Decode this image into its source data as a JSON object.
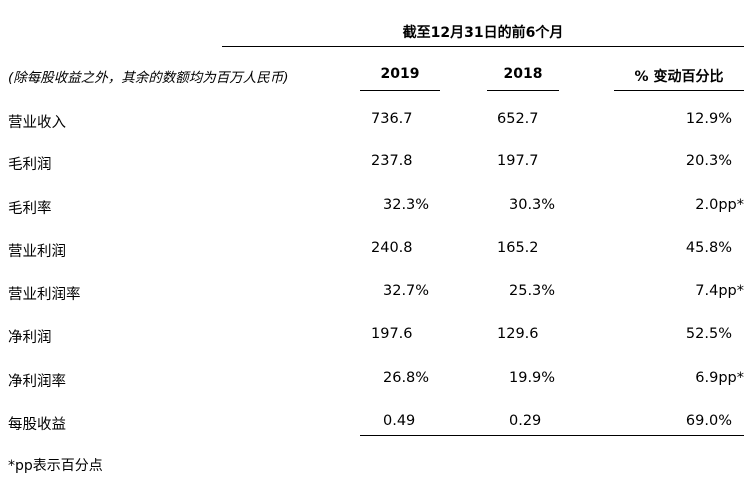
{
  "header": {
    "period": "截至12月31日的前6个月",
    "unit_note": "(除每股收益之外，其余的数额均为百万人民币)",
    "col_2019": "2019",
    "col_2018": "2018",
    "col_change": "% 变动百分比"
  },
  "rows": [
    {
      "label": "营业收入",
      "v2019": "736.7",
      "v2018": "652.7",
      "change": "12.9%"
    },
    {
      "label": "毛利润",
      "v2019": "237.8",
      "v2018": "197.7",
      "change": "20.3%"
    },
    {
      "label": "毛利率",
      "v2019": "32.3%",
      "v2018": "30.3%",
      "change": "2.0pp*"
    },
    {
      "label": "营业利润",
      "v2019": "240.8",
      "v2018": "165.2",
      "change": "45.8%"
    },
    {
      "label": "营业利润率",
      "v2019": "32.7%",
      "v2018": "25.3%",
      "change": "7.4pp*"
    },
    {
      "label": "净利润",
      "v2019": "197.6",
      "v2018": "129.6",
      "change": "52.5%"
    },
    {
      "label": "净利润率",
      "v2019": "26.8%",
      "v2018": "19.9%",
      "change": "6.9pp*"
    },
    {
      "label": "每股收益",
      "v2019": "0.49",
      "v2018": "0.29",
      "change": "69.0%"
    }
  ],
  "footnote": "*pp表示百分点"
}
